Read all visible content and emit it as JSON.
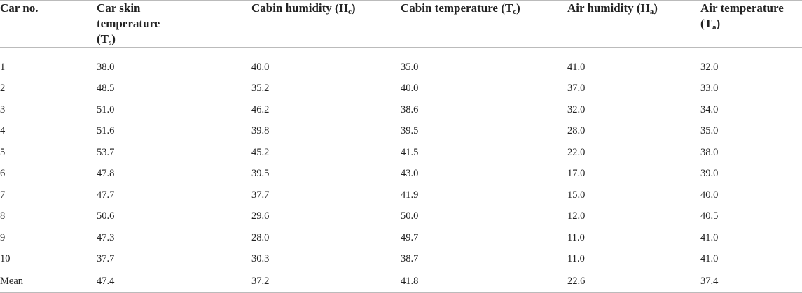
{
  "table": {
    "header": [
      [
        "Car no."
      ],
      [
        "Car skin temperature (T",
        "s",
        ")"
      ],
      [
        "Cabin humidity (H",
        "c",
        ")"
      ],
      [
        "Cabin temperature (T",
        "c",
        ")"
      ],
      [
        "Air humidity (H",
        "a",
        ")"
      ],
      [
        "Air temperature (T",
        "a",
        ")"
      ]
    ],
    "rows": [
      [
        "1",
        "38.0",
        "40.0",
        "35.0",
        "41.0",
        "32.0"
      ],
      [
        "2",
        "48.5",
        "35.2",
        "40.0",
        "37.0",
        "33.0"
      ],
      [
        "3",
        "51.0",
        "46.2",
        "38.6",
        "32.0",
        "34.0"
      ],
      [
        "4",
        "51.6",
        "39.8",
        "39.5",
        "28.0",
        "35.0"
      ],
      [
        "5",
        "53.7",
        "45.2",
        "41.5",
        "22.0",
        "38.0"
      ],
      [
        "6",
        "47.8",
        "39.5",
        "43.0",
        "17.0",
        "39.0"
      ],
      [
        "7",
        "47.7",
        "37.7",
        "41.9",
        "15.0",
        "40.0"
      ],
      [
        "8",
        "50.6",
        "29.6",
        "50.0",
        "12.0",
        "40.5"
      ],
      [
        "9",
        "47.3",
        "28.0",
        "49.7",
        "11.0",
        "41.0"
      ],
      [
        "10",
        "37.7",
        "30.3",
        "38.7",
        "11.0",
        "41.0"
      ],
      [
        "Mean",
        "47.4",
        "37.2",
        "41.8",
        "22.6",
        "37.4"
      ]
    ]
  }
}
